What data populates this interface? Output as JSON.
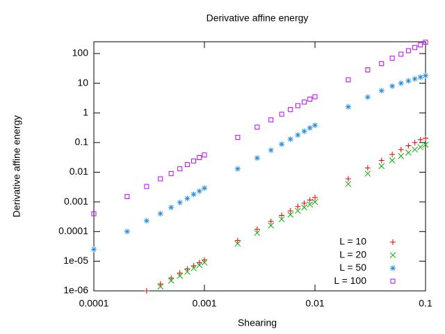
{
  "chart_data": {
    "type": "scatter",
    "title": "Derivative affine energy",
    "x_label": "Shearing",
    "y_label": "Derivative affine energy",
    "x": [
      0.0001,
      0.0002,
      0.0003,
      0.0004,
      0.0005,
      0.0006,
      0.0007,
      0.0008,
      0.0009,
      0.001,
      0.002,
      0.003,
      0.004,
      0.005,
      0.006,
      0.007,
      0.008,
      0.009,
      0.01,
      0.02,
      0.03,
      0.04,
      0.05,
      0.06,
      0.07,
      0.08,
      0.09,
      0.1
    ],
    "series": [
      {
        "name": "L = 10",
        "color": "#e00000",
        "marker": "plus",
        "values": [
          null,
          null,
          1e-06,
          1.7e-06,
          2.7e-06,
          4e-06,
          5.5e-06,
          7e-06,
          9e-06,
          1.1e-05,
          5e-05,
          0.00012,
          0.00022,
          0.00035,
          0.0005,
          0.0007,
          0.0009,
          0.00115,
          0.0014,
          0.006,
          0.014,
          0.025,
          0.04,
          0.058,
          0.078,
          0.1,
          0.125,
          0.14
        ]
      },
      {
        "name": "L = 20",
        "color": "#00b000",
        "marker": "cross",
        "values": [
          null,
          null,
          null,
          1.4e-06,
          2.2e-06,
          3.2e-06,
          4.4e-06,
          5.8e-06,
          7.3e-06,
          9e-06,
          3.9e-05,
          9e-05,
          0.00016,
          0.00026,
          0.00037,
          0.0005,
          0.00065,
          0.00082,
          0.001,
          0.004,
          0.009,
          0.016,
          0.025,
          0.035,
          0.046,
          0.058,
          0.07,
          0.085
        ]
      },
      {
        "name": "L = 50",
        "color": "#1f8be0",
        "marker": "star",
        "values": [
          2.5e-05,
          0.0001,
          0.00023,
          0.0004,
          0.00065,
          0.00095,
          0.0013,
          0.0018,
          0.0023,
          0.0029,
          0.013,
          0.03,
          0.055,
          0.088,
          0.13,
          0.18,
          0.24,
          0.31,
          0.38,
          1.6,
          3.4,
          5.6,
          8,
          10,
          12,
          14,
          16,
          18
        ]
      },
      {
        "name": "L = 100",
        "color": "#c000ff",
        "marker": "square",
        "values": [
          0.0004,
          0.0015,
          0.0033,
          0.006,
          0.009,
          0.013,
          0.018,
          0.024,
          0.031,
          0.038,
          0.15,
          0.33,
          0.58,
          0.9,
          1.3,
          1.75,
          2.3,
          2.9,
          3.5,
          13,
          28,
          46,
          70,
          95,
          125,
          160,
          195,
          240
        ]
      }
    ],
    "xlim": [
      0.0001,
      0.1
    ],
    "ylim": [
      1e-06,
      250
    ],
    "log_x": true,
    "log_y": true,
    "xticks": [
      0.0001,
      0.001,
      0.01,
      0.1
    ],
    "yticks": [
      {
        "value": 1e-06,
        "label": "1e-06"
      },
      {
        "value": 1e-05,
        "label": "1e-05"
      },
      0.0001,
      0.001,
      0.01,
      0.1,
      1,
      10,
      100
    ],
    "legend": "bottom-right"
  }
}
